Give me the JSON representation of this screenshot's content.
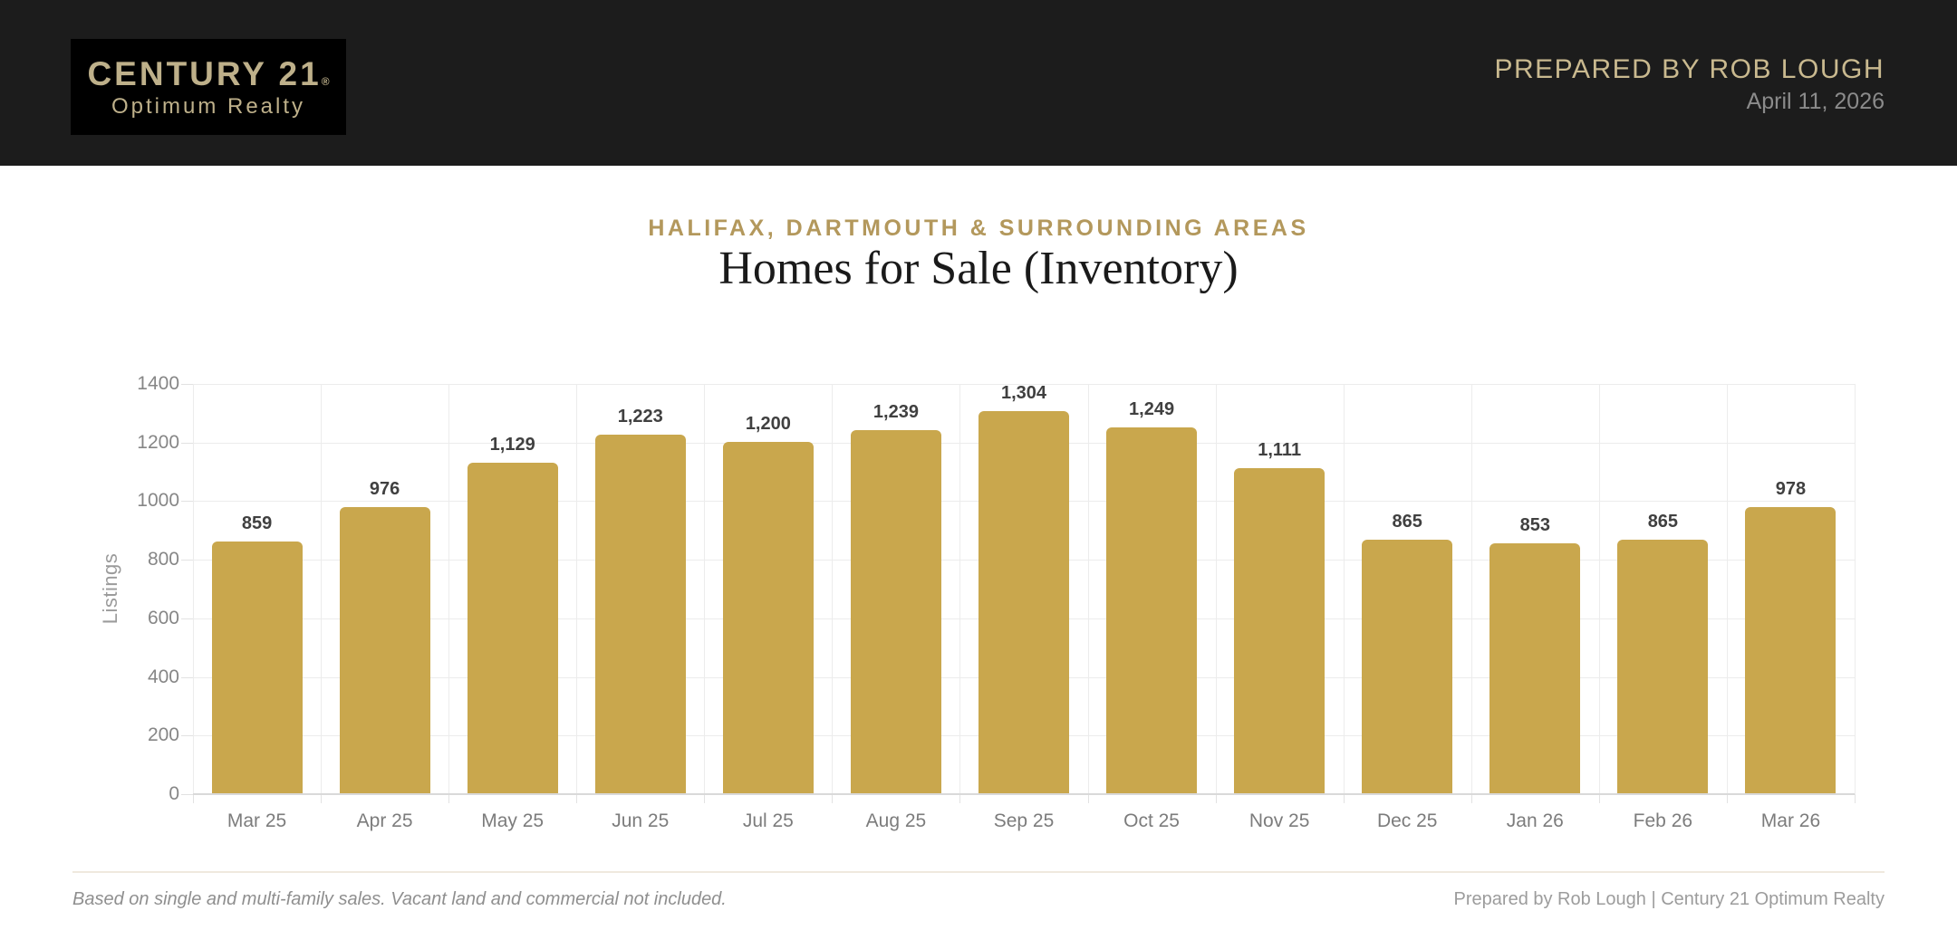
{
  "header": {
    "logo": {
      "brand": "CENTURY 21",
      "reg": "®",
      "sub": "Optimum Realty"
    },
    "prepared_by": "PREPARED BY ROB LOUGH",
    "date": "April 11, 2026"
  },
  "titles": {
    "subtitle": "HALIFAX, DARTMOUTH & SURROUNDING AREAS",
    "title": "Homes for Sale (Inventory)"
  },
  "chart_data": {
    "type": "bar",
    "title": "Homes for Sale (Inventory)",
    "categories": [
      "Mar 25",
      "Apr 25",
      "May 25",
      "Jun 25",
      "Jul 25",
      "Aug 25",
      "Sep 25",
      "Oct 25",
      "Nov 25",
      "Dec 25",
      "Jan 26",
      "Feb 26",
      "Mar 26"
    ],
    "values": [
      859,
      976,
      1129,
      1223,
      1200,
      1239,
      1304,
      1249,
      1111,
      865,
      853,
      865,
      978
    ],
    "value_labels": [
      "859",
      "976",
      "1,129",
      "1,223",
      "1,200",
      "1,239",
      "1,304",
      "1,249",
      "1,111",
      "865",
      "853",
      "865",
      "978"
    ],
    "xlabel": "",
    "ylabel": "Listings",
    "ylim": [
      0,
      1400
    ],
    "yticks": [
      0,
      200,
      400,
      600,
      800,
      1000,
      1200,
      1400
    ],
    "grid": true,
    "legend": false,
    "bar_color": "#c9a74d"
  },
  "footer": {
    "disclaimer": "Based on single and multi-family sales. Vacant land and commercial not included.",
    "credit": "Prepared by Rob Lough | Century 21 Optimum Realty"
  },
  "colors": {
    "header_bg": "#1c1c1c",
    "logo_bg": "#000000",
    "logo_gold": "#beb08a",
    "subtitle_gold": "#b3985c",
    "bar_gold": "#c9a74d"
  }
}
